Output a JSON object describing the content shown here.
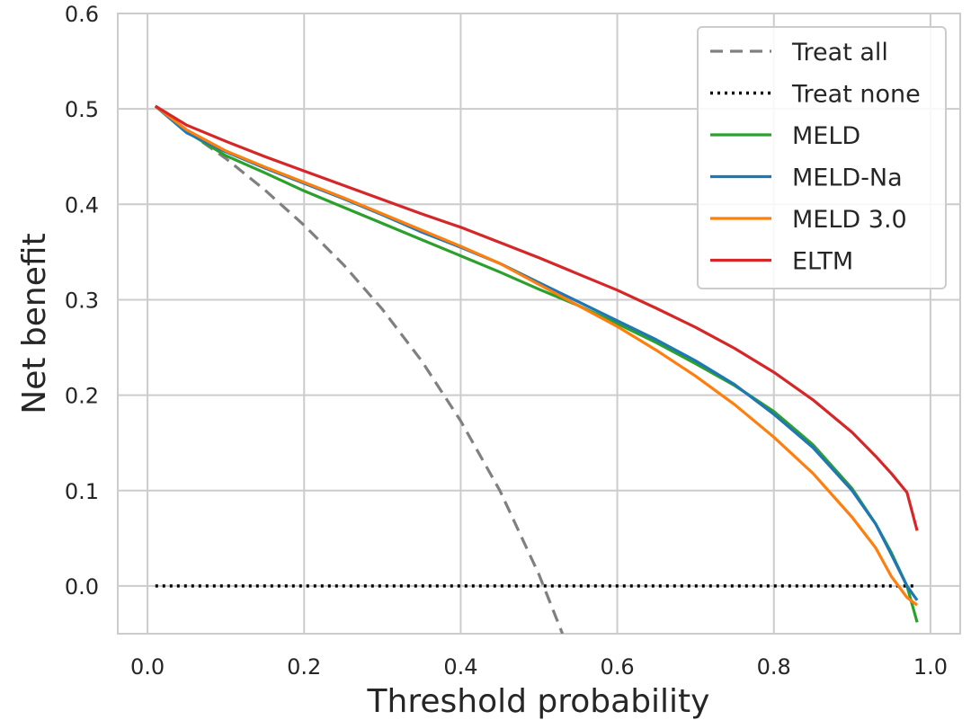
{
  "chart_data": {
    "type": "line",
    "title": "",
    "xlabel": "Threshold probability",
    "ylabel": "Net benefit",
    "xlim": [
      -0.038,
      1.038
    ],
    "ylim": [
      -0.05,
      0.6
    ],
    "xticks": [
      "0.0",
      "0.2",
      "0.4",
      "0.6",
      "0.8",
      "1.0"
    ],
    "yticks": [
      "0.0",
      "0.1",
      "0.2",
      "0.3",
      "0.4",
      "0.5",
      "0.6"
    ],
    "grid": true,
    "legend_position": "top-right",
    "series": [
      {
        "name": "Treat all",
        "color": "#808080",
        "style": "dashed",
        "x": [
          0.01,
          0.05,
          0.1,
          0.15,
          0.2,
          0.25,
          0.3,
          0.35,
          0.4,
          0.45,
          0.5,
          0.53
        ],
        "y": [
          0.503,
          0.477,
          0.448,
          0.415,
          0.378,
          0.337,
          0.29,
          0.236,
          0.173,
          0.1,
          0.012,
          -0.05
        ]
      },
      {
        "name": "Treat none",
        "color": "#000000",
        "style": "dotted",
        "x": [
          0.01,
          0.98
        ],
        "y": [
          0.0,
          0.0
        ]
      },
      {
        "name": "MELD",
        "color": "#2ca02c",
        "style": "solid",
        "x": [
          0.01,
          0.05,
          0.1,
          0.15,
          0.2,
          0.25,
          0.3,
          0.35,
          0.4,
          0.45,
          0.5,
          0.55,
          0.6,
          0.65,
          0.7,
          0.75,
          0.8,
          0.85,
          0.9,
          0.93,
          0.95,
          0.97,
          0.983
        ],
        "y": [
          0.503,
          0.476,
          0.451,
          0.433,
          0.414,
          0.397,
          0.38,
          0.363,
          0.346,
          0.329,
          0.311,
          0.294,
          0.275,
          0.255,
          0.233,
          0.21,
          0.183,
          0.148,
          0.102,
          0.065,
          0.035,
          0.0,
          -0.038
        ]
      },
      {
        "name": "MELD-Na",
        "color": "#1f77b4",
        "style": "solid",
        "x": [
          0.01,
          0.05,
          0.1,
          0.15,
          0.2,
          0.25,
          0.3,
          0.35,
          0.4,
          0.45,
          0.5,
          0.55,
          0.6,
          0.65,
          0.7,
          0.75,
          0.8,
          0.85,
          0.9,
          0.93,
          0.95,
          0.97,
          0.983
        ],
        "y": [
          0.503,
          0.475,
          0.455,
          0.438,
          0.422,
          0.406,
          0.389,
          0.371,
          0.355,
          0.338,
          0.318,
          0.298,
          0.278,
          0.258,
          0.236,
          0.211,
          0.18,
          0.145,
          0.1,
          0.065,
          0.033,
          0.0,
          -0.015
        ]
      },
      {
        "name": "MELD 3.0",
        "color": "#ff7f0e",
        "style": "solid",
        "x": [
          0.01,
          0.05,
          0.1,
          0.15,
          0.2,
          0.25,
          0.3,
          0.35,
          0.4,
          0.45,
          0.5,
          0.55,
          0.6,
          0.65,
          0.7,
          0.75,
          0.8,
          0.85,
          0.9,
          0.93,
          0.95,
          0.97,
          0.983
        ],
        "y": [
          0.503,
          0.478,
          0.456,
          0.439,
          0.423,
          0.407,
          0.39,
          0.373,
          0.356,
          0.338,
          0.316,
          0.294,
          0.272,
          0.247,
          0.22,
          0.19,
          0.156,
          0.118,
          0.072,
          0.04,
          0.01,
          -0.012,
          -0.02
        ]
      },
      {
        "name": "ELTM",
        "color": "#d62728",
        "style": "solid",
        "x": [
          0.01,
          0.05,
          0.1,
          0.15,
          0.2,
          0.25,
          0.3,
          0.35,
          0.4,
          0.45,
          0.5,
          0.55,
          0.6,
          0.65,
          0.7,
          0.75,
          0.8,
          0.85,
          0.9,
          0.93,
          0.95,
          0.97,
          0.983
        ],
        "y": [
          0.503,
          0.483,
          0.466,
          0.45,
          0.435,
          0.42,
          0.405,
          0.39,
          0.376,
          0.36,
          0.344,
          0.327,
          0.31,
          0.291,
          0.271,
          0.249,
          0.224,
          0.195,
          0.161,
          0.136,
          0.118,
          0.098,
          0.058
        ]
      }
    ]
  }
}
